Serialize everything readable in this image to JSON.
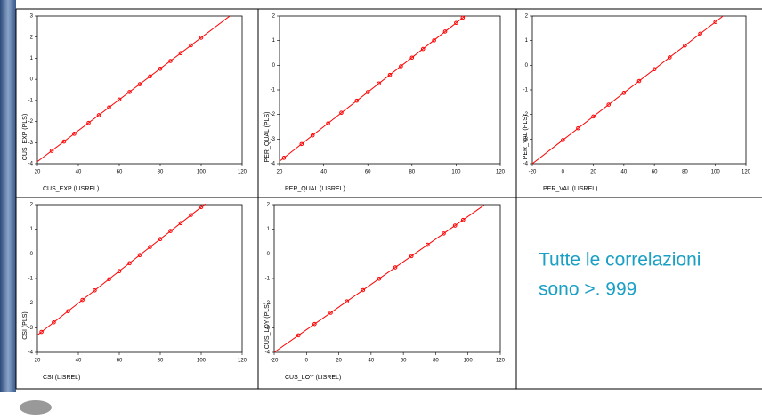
{
  "chart_data": [
    {
      "type": "scatter",
      "x_label": "CUS_EXP  (LISREL)",
      "y_label": "CUS_EXP (PLS)",
      "color": "#ff0000",
      "x": [
        27,
        33,
        38,
        45,
        50,
        55,
        60,
        65,
        70,
        75,
        80,
        85,
        90,
        95,
        100
      ],
      "values": [
        -3.39,
        -2.95,
        -2.58,
        -2.07,
        -1.7,
        -1.33,
        -0.96,
        -0.6,
        -0.23,
        0.14,
        0.5,
        0.87,
        1.24,
        1.61,
        1.97
      ],
      "fit_line": {
        "x": [
          20,
          114
        ],
        "y": [
          -3.9,
          3
        ]
      },
      "xlim": [
        20,
        120
      ],
      "ylim": [
        -4,
        3
      ],
      "xticks": [
        20,
        40,
        60,
        80,
        100,
        120
      ],
      "yticks": [
        -4,
        -3,
        -2,
        -1,
        0,
        1,
        2,
        3
      ]
    },
    {
      "type": "scatter",
      "x_label": "PER_QUAL  (LISREL)",
      "y_label": "PER_QUAL (PLS)",
      "color": "#ff0000",
      "x": [
        22,
        30,
        35,
        42,
        48,
        55,
        60,
        65,
        70,
        75,
        80,
        85,
        90,
        95,
        100,
        103
      ],
      "values": [
        -3.76,
        -3.2,
        -2.85,
        -2.36,
        -1.93,
        -1.44,
        -1.09,
        -0.74,
        -0.39,
        -0.04,
        0.31,
        0.66,
        1.01,
        1.37,
        1.72,
        1.93
      ],
      "fit_line": {
        "x": [
          20,
          104
        ],
        "y": [
          -3.9,
          2
        ]
      },
      "xlim": [
        20,
        120
      ],
      "ylim": [
        -4,
        2
      ],
      "xticks": [
        20,
        40,
        60,
        80,
        100,
        120
      ],
      "yticks": [
        -4,
        -3,
        -2,
        -1,
        0,
        1,
        2
      ]
    },
    {
      "type": "scatter",
      "x_label": "PER_VAL  (LISREL)",
      "y_label": "PER_VAL  (PLS)",
      "color": "#ff0000",
      "x": [
        0,
        10,
        20,
        30,
        40,
        50,
        60,
        70,
        80,
        90,
        100
      ],
      "values": [
        -3.04,
        -2.56,
        -2.08,
        -1.6,
        -1.12,
        -0.64,
        -0.16,
        0.32,
        0.8,
        1.28,
        1.76
      ],
      "fit_line": {
        "x": [
          -20,
          105
        ],
        "y": [
          -4,
          2
        ]
      },
      "xlim": [
        -20,
        120
      ],
      "ylim": [
        -4,
        2
      ],
      "xticks": [
        -20,
        0,
        20,
        40,
        60,
        80,
        100,
        120
      ],
      "yticks": [
        -4,
        -3,
        -2,
        -1,
        0,
        1,
        2
      ]
    },
    {
      "type": "scatter",
      "x_label": "CSI  (LISREL)",
      "y_label": "CSI  (PLS)",
      "color": "#ff0000",
      "x": [
        22,
        28,
        35,
        42,
        48,
        55,
        60,
        65,
        70,
        75,
        80,
        85,
        90,
        95,
        100
      ],
      "values": [
        -3.17,
        -2.78,
        -2.33,
        -1.87,
        -1.48,
        -1.03,
        -0.7,
        -0.38,
        -0.05,
        0.28,
        0.6,
        0.93,
        1.25,
        1.58,
        1.9
      ],
      "fit_line": {
        "x": [
          20,
          102
        ],
        "y": [
          -3.3,
          2.03
        ]
      },
      "xlim": [
        20,
        120
      ],
      "ylim": [
        -4,
        2
      ],
      "xticks": [
        20,
        40,
        60,
        80,
        100,
        120
      ],
      "yticks": [
        -4,
        -3,
        -2,
        -1,
        0,
        1,
        2
      ]
    },
    {
      "type": "scatter",
      "x_label": "CUS_LOY (LISREL)",
      "y_label": "CUS_LOY (PLS)",
      "color": "#ff0000",
      "x": [
        -5,
        5,
        15,
        25,
        35,
        45,
        55,
        65,
        75,
        85,
        92,
        97
      ],
      "values": [
        -3.31,
        -2.85,
        -2.39,
        -1.93,
        -1.47,
        -1.01,
        -0.55,
        -0.09,
        0.37,
        0.83,
        1.15,
        1.38
      ],
      "fit_line": {
        "x": [
          -20,
          110
        ],
        "y": [
          -4,
          1.98
        ]
      },
      "xlim": [
        -20,
        120
      ],
      "ylim": [
        -4,
        2
      ],
      "xticks": [
        -20,
        0,
        20,
        40,
        60,
        80,
        100,
        120
      ],
      "yticks": [
        -4,
        -3,
        -2,
        -1,
        0,
        1,
        2
      ]
    }
  ],
  "note": [
    "Tutte le correlazioni",
    "sono >. 999"
  ]
}
